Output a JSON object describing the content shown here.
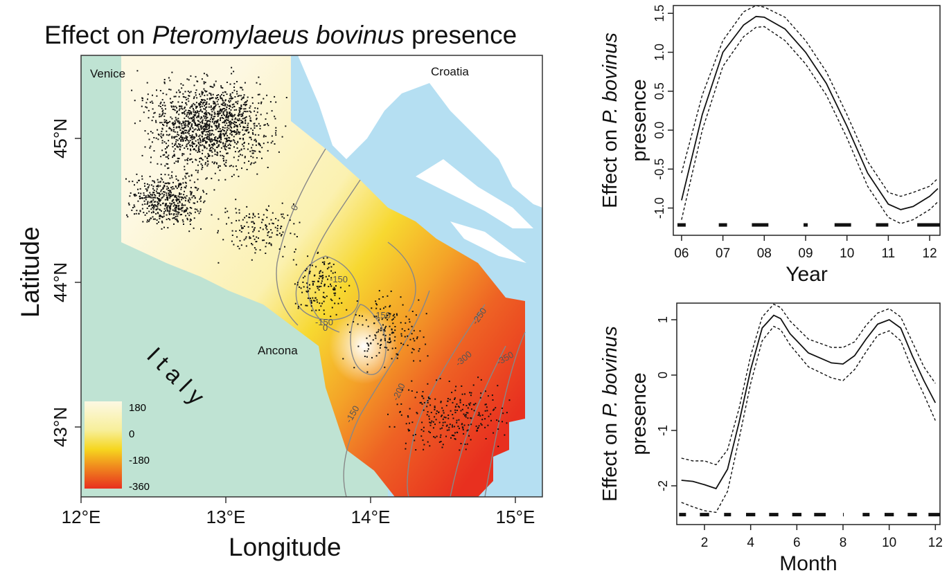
{
  "map": {
    "title_prefix": "Effect on ",
    "title_species": "Pteromylaeus bovinus",
    "title_suffix": " presence",
    "xlabel": "Longitude",
    "ylabel": "Latitude",
    "lon_ticks": [
      "12°E",
      "13°E",
      "14°E",
      "15°E"
    ],
    "lat_ticks": [
      "45°N",
      "44°N",
      "43°N"
    ],
    "places": {
      "venice": "Venice",
      "croatia": "Croatia",
      "ancona": "Ancona",
      "italy": "I t a l y"
    },
    "legend": [
      "180",
      "0",
      "-180",
      "-360"
    ],
    "contours": [
      "0",
      "0",
      "-150",
      "-150",
      "-150",
      "-250",
      "-300",
      "-350",
      "-200",
      "-150"
    ],
    "colors": {
      "sea_land": "#bfe3d3",
      "water": "#b5dff2",
      "land_north": "#ffffff",
      "high": "#fdf8e3",
      "mid": "#f7df3a",
      "low": "#e8301f"
    }
  },
  "chart_data": [
    {
      "type": "line",
      "ylabel_prefix": "Effect on ",
      "ylabel_species": "P. bovinus",
      "ylabel_line2": "presence",
      "xlabel": "Year",
      "x_ticks": [
        "06",
        "07",
        "08",
        "09",
        "10",
        "11",
        "12"
      ],
      "y_ticks": [
        "1.5",
        "1.0",
        "0.5",
        "0.0",
        "-0.5",
        "-1.0"
      ],
      "ylim": [
        -1.35,
        1.6
      ],
      "xlim": [
        5.8,
        12.25
      ],
      "series": [
        {
          "role": "fit",
          "x": [
            6.0,
            6.5,
            7.0,
            7.5,
            7.8,
            8.0,
            8.5,
            9.0,
            9.5,
            10.0,
            10.5,
            11.0,
            11.3,
            11.6,
            12.0,
            12.2
          ],
          "y": [
            -0.9,
            0.2,
            1.0,
            1.35,
            1.46,
            1.45,
            1.3,
            1.0,
            0.6,
            0.05,
            -0.55,
            -0.95,
            -1.02,
            -0.98,
            -0.85,
            -0.75
          ]
        },
        {
          "role": "upper",
          "x": [
            6.0,
            6.5,
            7.0,
            7.5,
            7.8,
            8.0,
            8.5,
            9.0,
            9.5,
            10.0,
            10.5,
            11.0,
            11.3,
            11.6,
            12.0,
            12.2
          ],
          "y": [
            -0.55,
            0.45,
            1.15,
            1.52,
            1.6,
            1.58,
            1.45,
            1.15,
            0.75,
            0.2,
            -0.4,
            -0.8,
            -0.85,
            -0.8,
            -0.72,
            -0.62
          ]
        },
        {
          "role": "lower",
          "x": [
            6.0,
            6.5,
            7.0,
            7.5,
            7.8,
            8.0,
            8.5,
            9.0,
            9.5,
            10.0,
            10.5,
            11.0,
            11.3,
            11.6,
            12.0,
            12.2
          ],
          "y": [
            -1.15,
            0.0,
            0.82,
            1.2,
            1.32,
            1.33,
            1.15,
            0.85,
            0.45,
            -0.1,
            -0.72,
            -1.12,
            -1.2,
            -1.15,
            -1.02,
            -0.92
          ]
        }
      ],
      "rug": [
        [
          5.9,
          6.1
        ],
        [
          6.9,
          7.1
        ],
        [
          7.7,
          8.1
        ],
        [
          8.95,
          9.05
        ],
        [
          9.7,
          10.1
        ],
        [
          10.7,
          11.0
        ],
        [
          11.7,
          12.25
        ]
      ]
    },
    {
      "type": "line",
      "ylabel_prefix": "Effect on ",
      "ylabel_species": "P. bovinus",
      "ylabel_line2": "presence",
      "xlabel": "Month",
      "x_ticks": [
        "2",
        "4",
        "6",
        "8",
        "10",
        "12"
      ],
      "y_ticks": [
        "1",
        "0",
        "-1",
        "-2"
      ],
      "ylim": [
        -2.7,
        1.3
      ],
      "xlim": [
        0.8,
        12.2
      ],
      "series": [
        {
          "role": "fit",
          "x": [
            1.0,
            1.5,
            2.0,
            2.5,
            3.0,
            3.5,
            4.0,
            4.5,
            5.0,
            5.3,
            5.7,
            6.5,
            7.5,
            8.0,
            8.5,
            9.0,
            9.5,
            10.0,
            10.5,
            11.0,
            11.5,
            12.0
          ],
          "y": [
            -1.9,
            -1.92,
            -1.98,
            -2.05,
            -1.7,
            -0.85,
            0.1,
            0.85,
            1.08,
            1.02,
            0.75,
            0.4,
            0.22,
            0.2,
            0.35,
            0.65,
            0.92,
            1.0,
            0.85,
            0.35,
            -0.1,
            -0.5
          ]
        },
        {
          "role": "upper",
          "x": [
            1.0,
            1.5,
            2.0,
            2.5,
            3.0,
            3.5,
            4.0,
            4.5,
            5.0,
            5.3,
            5.7,
            6.5,
            7.5,
            8.0,
            8.5,
            9.0,
            9.5,
            10.0,
            10.5,
            11.0,
            11.5,
            12.0
          ],
          "y": [
            -1.5,
            -1.55,
            -1.55,
            -1.62,
            -1.35,
            -0.6,
            0.35,
            1.05,
            1.28,
            1.22,
            0.98,
            0.65,
            0.5,
            0.5,
            0.6,
            0.9,
            1.12,
            1.2,
            1.05,
            0.6,
            0.15,
            -0.15
          ]
        },
        {
          "role": "lower",
          "x": [
            1.0,
            1.5,
            2.0,
            2.5,
            3.0,
            3.5,
            4.0,
            4.5,
            5.0,
            5.3,
            5.7,
            6.5,
            7.5,
            8.0,
            8.5,
            9.0,
            9.5,
            10.0,
            10.5,
            11.0,
            11.5,
            12.0
          ],
          "y": [
            -2.3,
            -2.38,
            -2.45,
            -2.48,
            -2.1,
            -1.15,
            -0.15,
            0.62,
            0.88,
            0.82,
            0.55,
            0.15,
            -0.05,
            -0.1,
            0.1,
            0.42,
            0.72,
            0.8,
            0.62,
            0.1,
            -0.35,
            -0.82
          ]
        }
      ],
      "rug": [
        [
          0.9,
          1.2
        ],
        [
          1.8,
          2.2
        ],
        [
          2.85,
          3.15
        ],
        [
          3.8,
          4.2
        ],
        [
          4.8,
          5.2
        ],
        [
          5.8,
          6.2
        ],
        [
          6.75,
          7.25
        ],
        [
          8.0,
          8.03
        ],
        [
          8.85,
          9.15
        ],
        [
          9.8,
          10.2
        ],
        [
          10.8,
          11.2
        ],
        [
          11.7,
          12.2
        ]
      ]
    }
  ]
}
